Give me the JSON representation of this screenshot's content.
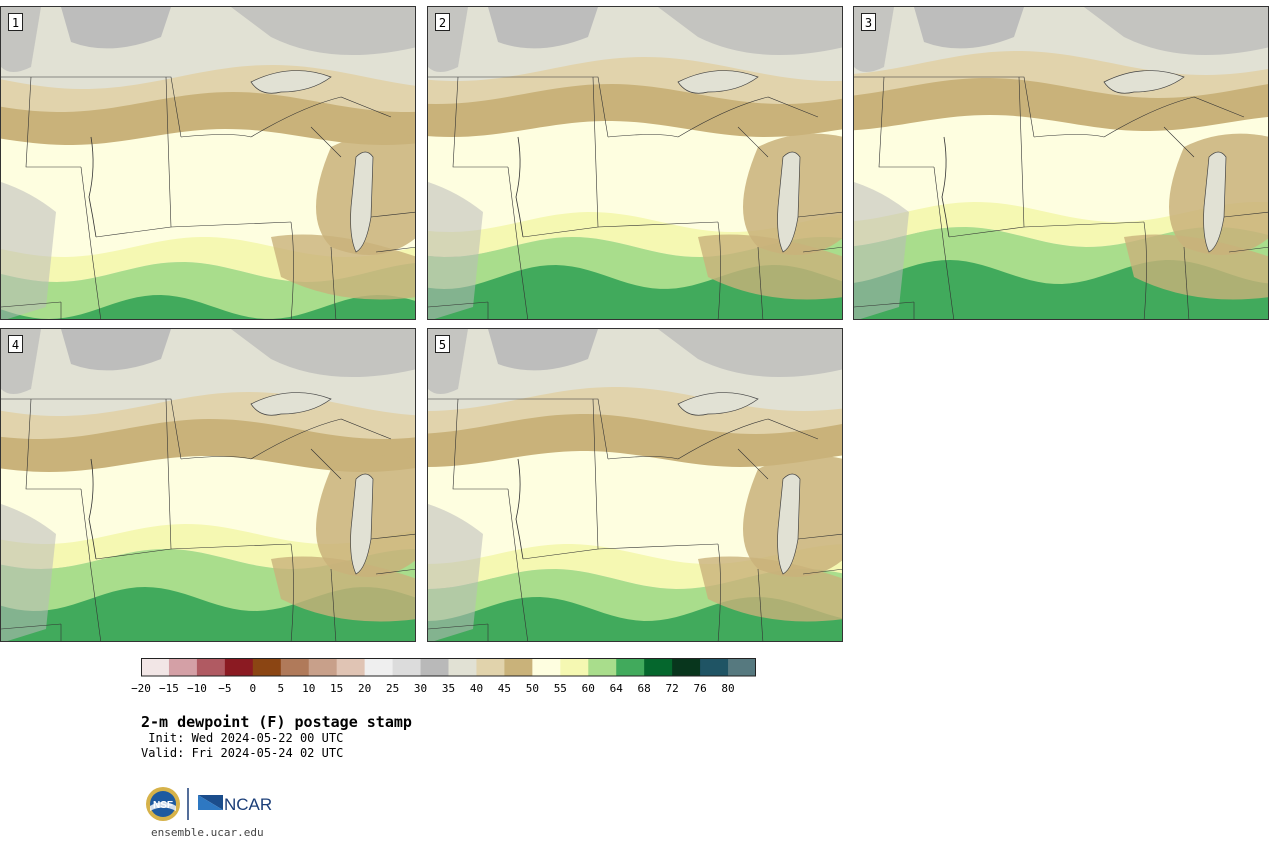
{
  "panels": [
    {
      "label": "1"
    },
    {
      "label": "2"
    },
    {
      "label": "3"
    },
    {
      "label": "4"
    },
    {
      "label": "5"
    }
  ],
  "legend": {
    "ticks": [
      "−20",
      "−15",
      "−10",
      "−5",
      "0",
      "5",
      "10",
      "15",
      "20",
      "25",
      "30",
      "35",
      "40",
      "45",
      "50",
      "55",
      "60",
      "64",
      "68",
      "72",
      "76",
      "80"
    ],
    "colors": [
      "#f2e6e6",
      "#d4a0a6",
      "#b05a62",
      "#8b1a22",
      "#8b4513",
      "#b07a5a",
      "#c8a08a",
      "#e0c4b4",
      "#efefef",
      "#dcdcdc",
      "#b9b9b9",
      "#e1e1d4",
      "#e1d3ac",
      "#c9b27a",
      "#fefee0",
      "#f5f8b2",
      "#a9dd8c",
      "#41aa5c",
      "#05672d",
      "#08361d",
      "#1f5464",
      "#56797f"
    ]
  },
  "title": "2-m dewpoint (F) postage stamp",
  "init": " Init: Wed 2024-05-22 00 UTC",
  "valid": "Valid: Fri 2024-05-24 02 UTC",
  "logos": {
    "nsf": "NSF",
    "ncar": "NCAR"
  },
  "url": "ensemble.ucar.edu"
}
